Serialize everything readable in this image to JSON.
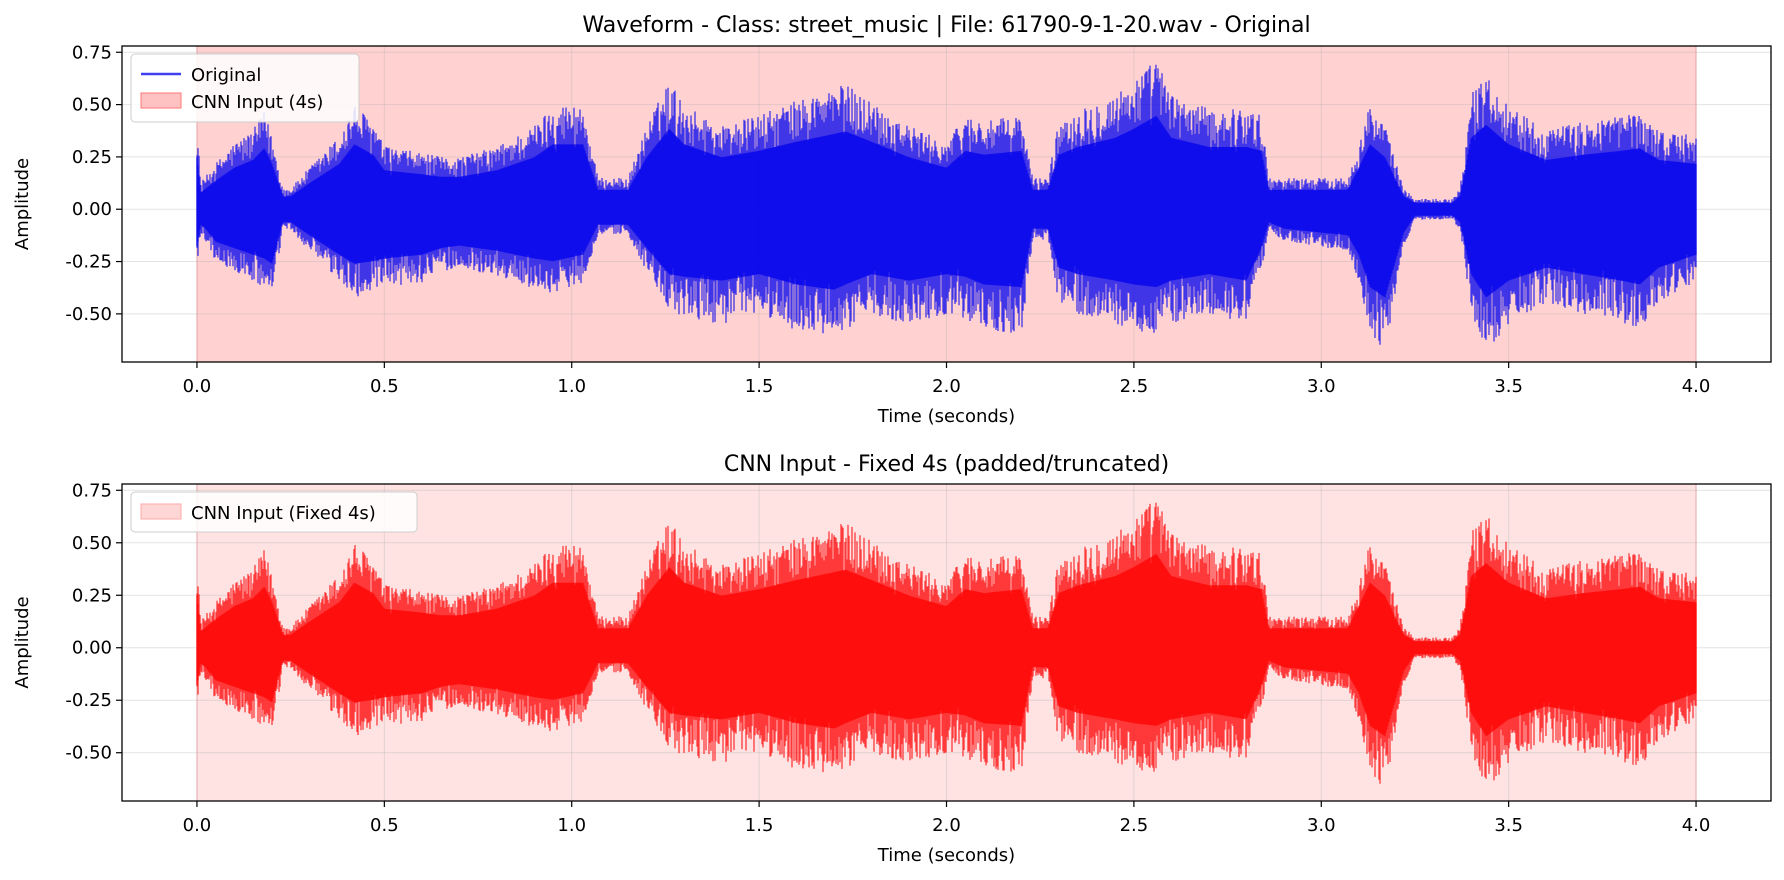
{
  "chart_data": [
    {
      "type": "line",
      "title": "Waveform - Class: street_music | File: 61790-9-1-20.wav - Original",
      "xlabel": "Time (seconds)",
      "ylabel": "Amplitude",
      "xlim": [
        -0.2,
        4.2
      ],
      "ylim": [
        -0.73,
        0.78
      ],
      "xticks": [
        "0.0",
        "0.5",
        "1.0",
        "1.5",
        "2.0",
        "2.5",
        "3.0",
        "3.5",
        "4.0"
      ],
      "yticks": [
        "-0.50",
        "-0.25",
        "0.00",
        "0.25",
        "0.50",
        "0.75"
      ],
      "grid": true,
      "legend_position": "top-left",
      "shaded_region": {
        "name": "CNN Input (4s)",
        "x": [
          0.0,
          4.0
        ],
        "color": "#ff9999",
        "opacity": 0.45
      },
      "series": [
        {
          "name": "Original",
          "color": "#0000ee",
          "envelope": {
            "t": [
              0.0,
              0.01,
              0.02,
              0.05,
              0.1,
              0.15,
              0.18,
              0.2,
              0.23,
              0.25,
              0.3,
              0.38,
              0.42,
              0.47,
              0.5,
              0.6,
              0.65,
              0.7,
              0.8,
              0.9,
              0.95,
              1.03,
              1.07,
              1.15,
              1.2,
              1.26,
              1.3,
              1.4,
              1.5,
              1.6,
              1.7,
              1.73,
              1.8,
              1.9,
              2.0,
              2.05,
              2.1,
              2.2,
              2.23,
              2.27,
              2.3,
              2.35,
              2.45,
              2.5,
              2.56,
              2.6,
              2.7,
              2.8,
              2.84,
              2.86,
              2.9,
              3.0,
              3.07,
              3.1,
              3.13,
              3.17,
              3.22,
              3.25,
              3.35,
              3.37,
              3.4,
              3.44,
              3.5,
              3.6,
              3.7,
              3.8,
              3.85,
              3.9,
              4.0
            ],
            "hi": [
              0.42,
              0.13,
              0.15,
              0.22,
              0.32,
              0.38,
              0.47,
              0.35,
              0.1,
              0.1,
              0.2,
              0.35,
              0.5,
              0.42,
              0.3,
              0.27,
              0.25,
              0.25,
              0.3,
              0.4,
              0.5,
              0.5,
              0.15,
              0.15,
              0.4,
              0.62,
              0.5,
              0.4,
              0.45,
              0.52,
              0.58,
              0.6,
              0.52,
              0.4,
              0.32,
              0.45,
              0.42,
              0.45,
              0.15,
              0.15,
              0.42,
              0.48,
              0.55,
              0.62,
              0.72,
              0.55,
              0.48,
              0.48,
              0.45,
              0.15,
              0.15,
              0.15,
              0.15,
              0.32,
              0.5,
              0.4,
              0.1,
              0.05,
              0.05,
              0.1,
              0.55,
              0.65,
              0.5,
              0.38,
              0.42,
              0.45,
              0.47,
              0.38,
              0.35
            ],
            "lo": [
              -0.3,
              -0.12,
              -0.14,
              -0.25,
              -0.3,
              -0.35,
              -0.38,
              -0.42,
              -0.1,
              -0.1,
              -0.2,
              -0.35,
              -0.42,
              -0.4,
              -0.38,
              -0.35,
              -0.3,
              -0.28,
              -0.32,
              -0.38,
              -0.4,
              -0.35,
              -0.12,
              -0.12,
              -0.3,
              -0.5,
              -0.52,
              -0.55,
              -0.5,
              -0.58,
              -0.62,
              -0.58,
              -0.5,
              -0.55,
              -0.5,
              -0.52,
              -0.58,
              -0.6,
              -0.15,
              -0.15,
              -0.45,
              -0.5,
              -0.55,
              -0.58,
              -0.6,
              -0.55,
              -0.5,
              -0.55,
              -0.3,
              -0.1,
              -0.15,
              -0.18,
              -0.2,
              -0.35,
              -0.6,
              -0.68,
              -0.18,
              -0.05,
              -0.05,
              -0.1,
              -0.5,
              -0.68,
              -0.55,
              -0.45,
              -0.5,
              -0.55,
              -0.58,
              -0.45,
              -0.35
            ]
          }
        }
      ]
    },
    {
      "type": "line",
      "title": "CNN Input - Fixed 4s (padded/truncated)",
      "xlabel": "Time (seconds)",
      "ylabel": "Amplitude",
      "xlim": [
        -0.2,
        4.2
      ],
      "ylim": [
        -0.73,
        0.78
      ],
      "xticks": [
        "0.0",
        "0.5",
        "1.0",
        "1.5",
        "2.0",
        "2.5",
        "3.0",
        "3.5",
        "4.0"
      ],
      "yticks": [
        "-0.50",
        "-0.25",
        "0.00",
        "0.25",
        "0.50",
        "0.75"
      ],
      "grid": true,
      "legend_position": "top-left",
      "shaded_region": {
        "name": "CNN Input (Fixed 4s)",
        "x": [
          0.0,
          4.0
        ],
        "color": "#ffcccc",
        "opacity": 0.55
      },
      "series": [
        {
          "name": "",
          "color": "#ff0000",
          "envelope": {
            "t": [
              0.0,
              0.01,
              0.02,
              0.05,
              0.1,
              0.15,
              0.18,
              0.2,
              0.23,
              0.25,
              0.3,
              0.38,
              0.42,
              0.47,
              0.5,
              0.6,
              0.65,
              0.7,
              0.8,
              0.9,
              0.95,
              1.03,
              1.07,
              1.15,
              1.2,
              1.26,
              1.3,
              1.4,
              1.5,
              1.6,
              1.7,
              1.73,
              1.8,
              1.9,
              2.0,
              2.05,
              2.1,
              2.2,
              2.23,
              2.27,
              2.3,
              2.35,
              2.45,
              2.5,
              2.56,
              2.6,
              2.7,
              2.8,
              2.84,
              2.86,
              2.9,
              3.0,
              3.07,
              3.1,
              3.13,
              3.17,
              3.22,
              3.25,
              3.35,
              3.37,
              3.4,
              3.44,
              3.5,
              3.6,
              3.7,
              3.8,
              3.85,
              3.9,
              4.0
            ],
            "hi": [
              0.42,
              0.13,
              0.15,
              0.22,
              0.32,
              0.38,
              0.47,
              0.35,
              0.1,
              0.1,
              0.2,
              0.35,
              0.5,
              0.42,
              0.3,
              0.27,
              0.25,
              0.25,
              0.3,
              0.4,
              0.5,
              0.5,
              0.15,
              0.15,
              0.4,
              0.62,
              0.5,
              0.4,
              0.45,
              0.52,
              0.58,
              0.6,
              0.52,
              0.4,
              0.32,
              0.45,
              0.42,
              0.45,
              0.15,
              0.15,
              0.42,
              0.48,
              0.55,
              0.62,
              0.72,
              0.55,
              0.48,
              0.48,
              0.45,
              0.15,
              0.15,
              0.15,
              0.15,
              0.32,
              0.5,
              0.4,
              0.1,
              0.05,
              0.05,
              0.1,
              0.55,
              0.65,
              0.5,
              0.38,
              0.42,
              0.45,
              0.47,
              0.38,
              0.35
            ],
            "lo": [
              -0.3,
              -0.12,
              -0.14,
              -0.25,
              -0.3,
              -0.35,
              -0.38,
              -0.42,
              -0.1,
              -0.1,
              -0.2,
              -0.35,
              -0.42,
              -0.4,
              -0.38,
              -0.35,
              -0.3,
              -0.28,
              -0.32,
              -0.38,
              -0.4,
              -0.35,
              -0.12,
              -0.12,
              -0.3,
              -0.5,
              -0.52,
              -0.55,
              -0.5,
              -0.58,
              -0.62,
              -0.58,
              -0.5,
              -0.55,
              -0.5,
              -0.52,
              -0.58,
              -0.6,
              -0.15,
              -0.15,
              -0.45,
              -0.5,
              -0.55,
              -0.58,
              -0.6,
              -0.55,
              -0.5,
              -0.55,
              -0.3,
              -0.1,
              -0.15,
              -0.18,
              -0.2,
              -0.35,
              -0.6,
              -0.68,
              -0.18,
              -0.05,
              -0.05,
              -0.1,
              -0.5,
              -0.68,
              -0.55,
              -0.45,
              -0.5,
              -0.55,
              -0.58,
              -0.45,
              -0.35
            ]
          }
        }
      ]
    }
  ]
}
